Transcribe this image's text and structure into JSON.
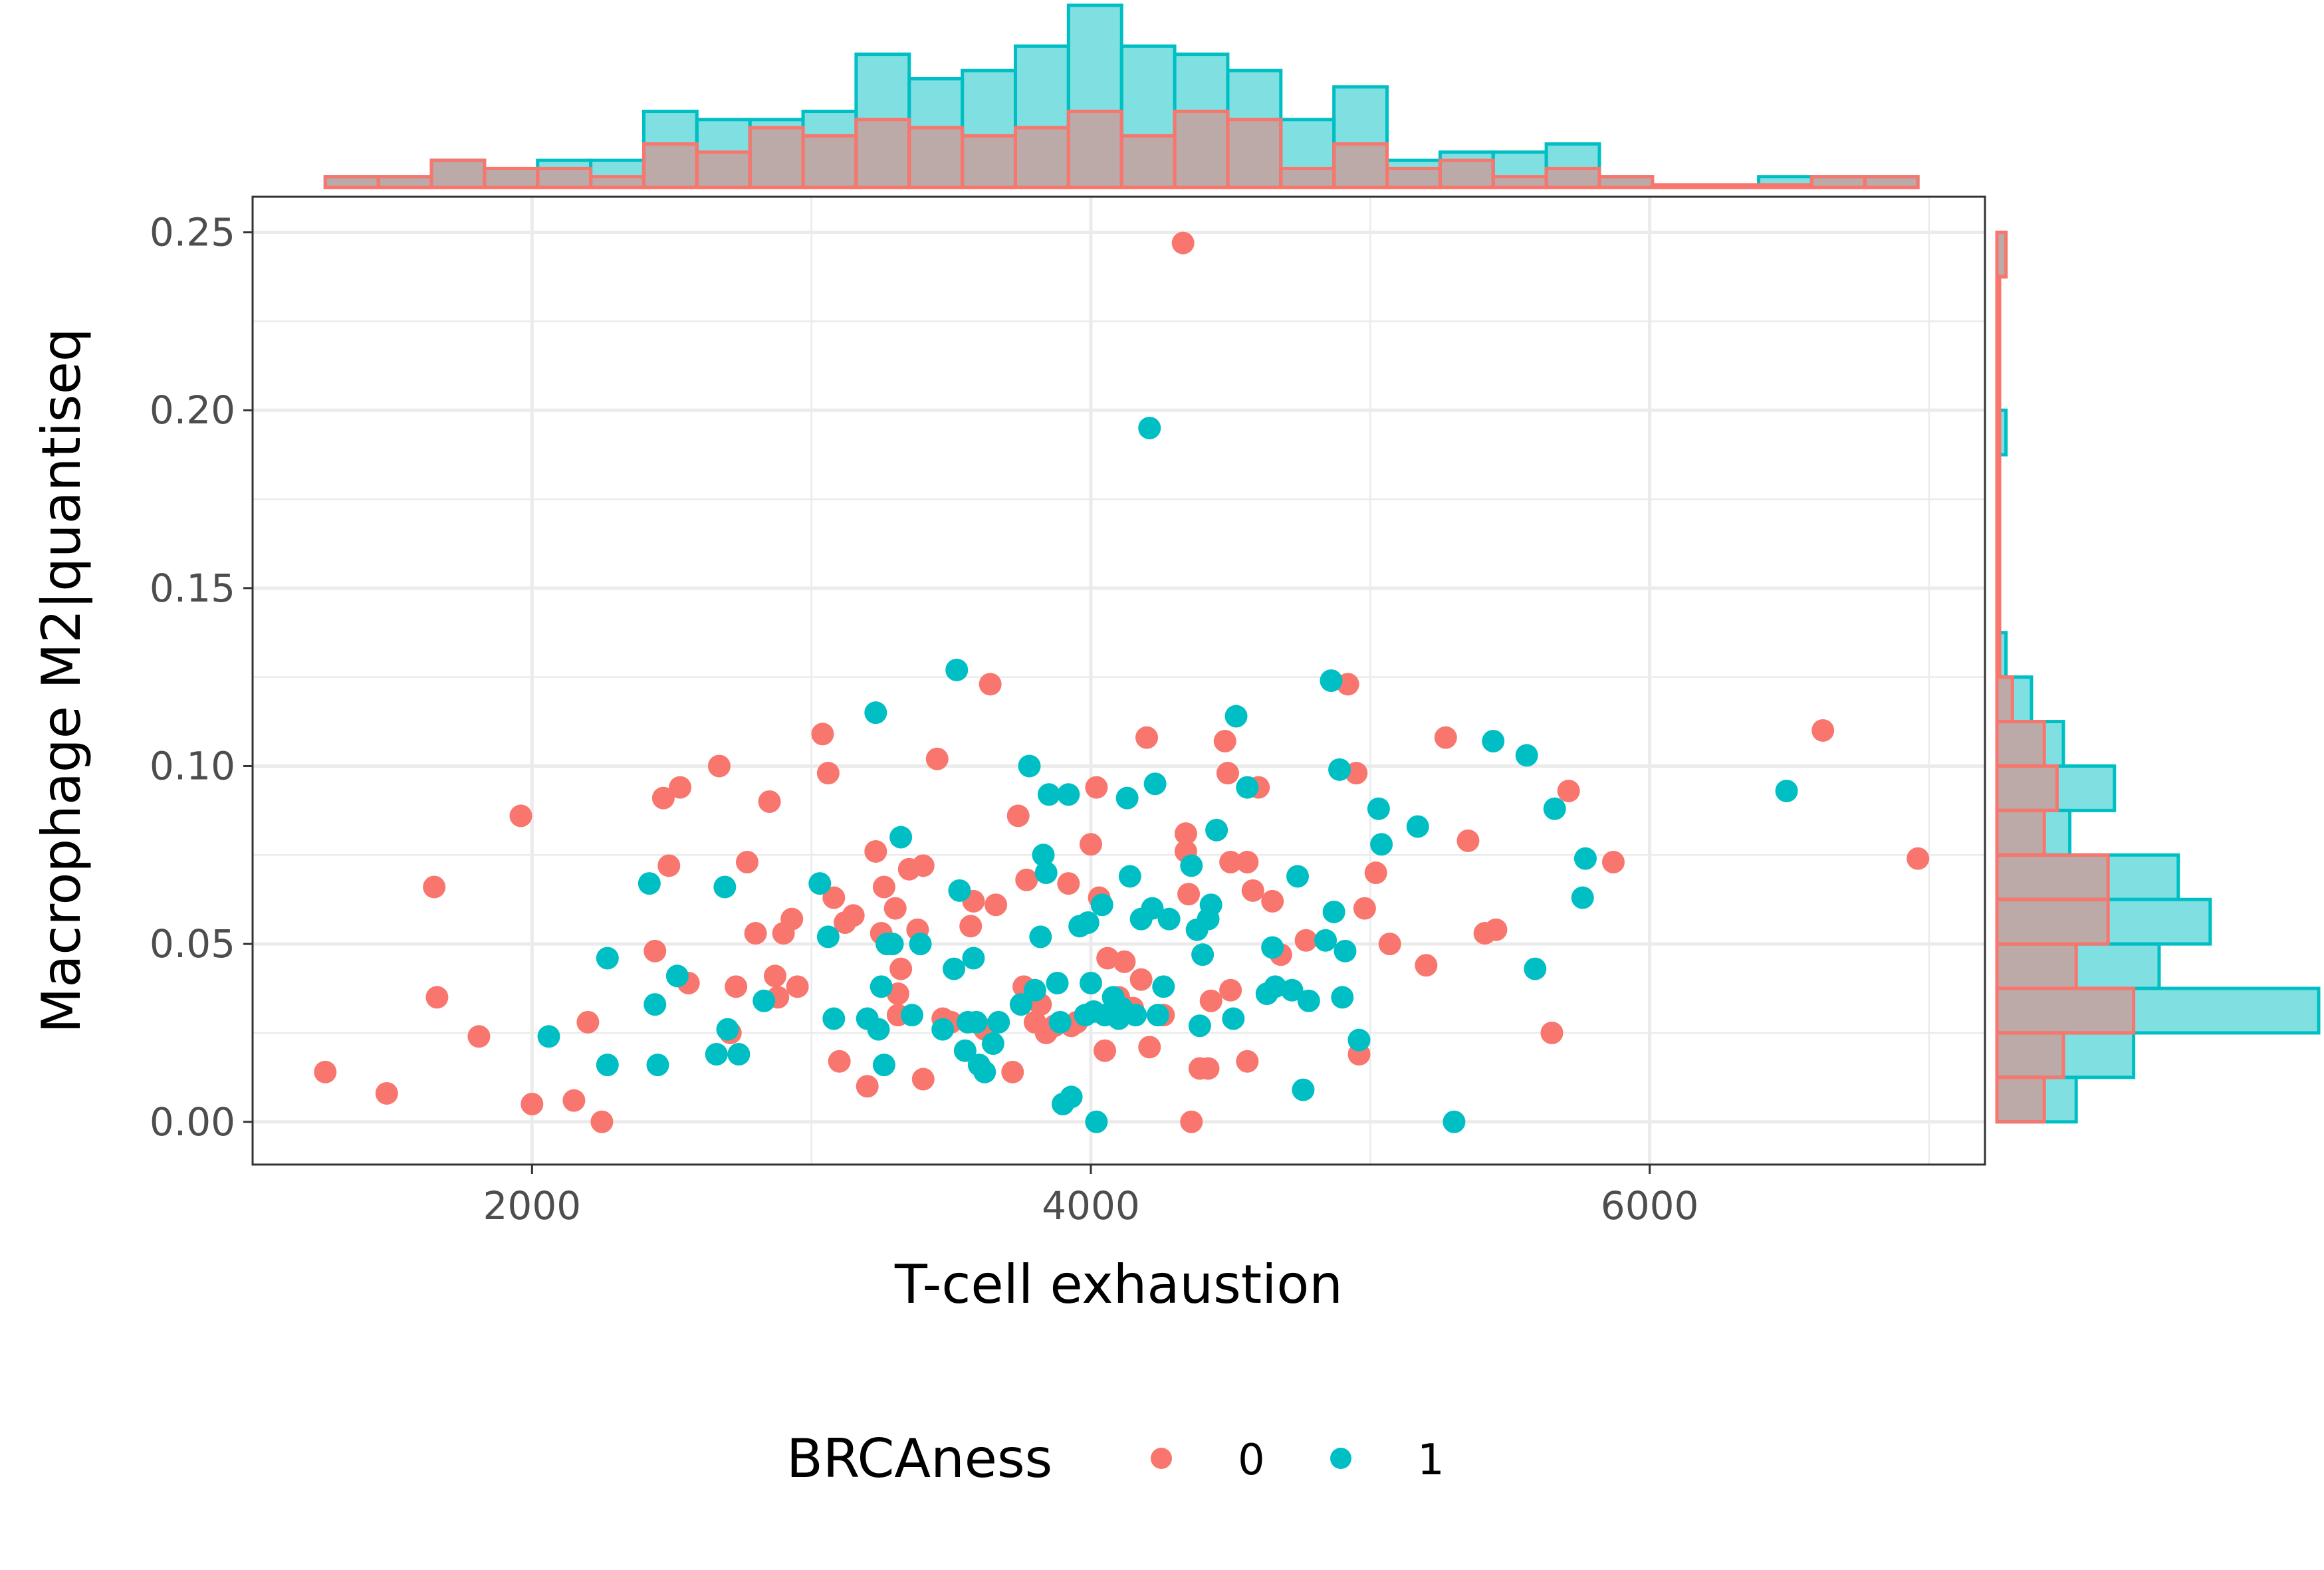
{
  "colors": {
    "group0": "#F8766D",
    "group1": "#00BFC4"
  },
  "chart_data": {
    "type": "scatter",
    "xlabel": "T-cell exhaustion",
    "ylabel": "Macrophage M2|quantiseq",
    "xlim": [
      1000,
      7200
    ],
    "ylim": [
      -0.012,
      0.26
    ],
    "x_ticks": [
      2000,
      4000,
      6000
    ],
    "x_tick_labels": [
      "2000",
      "4000",
      "6000"
    ],
    "y_ticks": [
      0,
      0.05,
      0.1,
      0.15,
      0.2,
      0.25
    ],
    "y_tick_labels": [
      "0.00",
      "0.05",
      "0.10",
      "0.15",
      "0.20",
      "0.25"
    ],
    "grid": true,
    "legend": {
      "title": "BRCAness",
      "position": "bottom",
      "entries": [
        "0",
        "1"
      ]
    },
    "marginals": "histograms of x (top) and y (right) per BRCAness group",
    "series": [
      {
        "name": "0",
        "color": "#F8766D",
        "points": [
          [
            1260,
            0.014
          ],
          [
            1480,
            0.008
          ],
          [
            1650,
            0.066
          ],
          [
            1660,
            0.035
          ],
          [
            1810,
            0.024
          ],
          [
            1960,
            0.086
          ],
          [
            2000,
            0.005
          ],
          [
            2150,
            0.006
          ],
          [
            2200,
            0.028
          ],
          [
            2250,
            0.0
          ],
          [
            2440,
            0.048
          ],
          [
            2470,
            0.091
          ],
          [
            2490,
            0.072
          ],
          [
            2530,
            0.094
          ],
          [
            2560,
            0.039
          ],
          [
            2670,
            0.1
          ],
          [
            2710,
            0.025
          ],
          [
            2730,
            0.038
          ],
          [
            2770,
            0.073
          ],
          [
            2800,
            0.053
          ],
          [
            2850,
            0.09
          ],
          [
            2870,
            0.041
          ],
          [
            2880,
            0.035
          ],
          [
            2900,
            0.053
          ],
          [
            2930,
            0.057
          ],
          [
            2950,
            0.038
          ],
          [
            3040,
            0.109
          ],
          [
            3060,
            0.098
          ],
          [
            3080,
            0.063
          ],
          [
            3100,
            0.017
          ],
          [
            3120,
            0.056
          ],
          [
            3150,
            0.058
          ],
          [
            3200,
            0.01
          ],
          [
            3230,
            0.076
          ],
          [
            3250,
            0.053
          ],
          [
            3260,
            0.066
          ],
          [
            3300,
            0.06
          ],
          [
            3310,
            0.03
          ],
          [
            3310,
            0.036
          ],
          [
            3320,
            0.043
          ],
          [
            3350,
            0.071
          ],
          [
            3380,
            0.054
          ],
          [
            3400,
            0.072
          ],
          [
            3400,
            0.012
          ],
          [
            3450,
            0.102
          ],
          [
            3470,
            0.029
          ],
          [
            3500,
            0.028
          ],
          [
            3570,
            0.055
          ],
          [
            3580,
            0.062
          ],
          [
            3620,
            0.026
          ],
          [
            3640,
            0.123
          ],
          [
            3660,
            0.061
          ],
          [
            3720,
            0.014
          ],
          [
            3740,
            0.086
          ],
          [
            3760,
            0.038
          ],
          [
            3770,
            0.068
          ],
          [
            3800,
            0.028
          ],
          [
            3820,
            0.033
          ],
          [
            3840,
            0.025
          ],
          [
            3870,
            0.027
          ],
          [
            3920,
            0.067
          ],
          [
            3930,
            0.027
          ],
          [
            3950,
            0.028
          ],
          [
            4000,
            0.078
          ],
          [
            4020,
            0.094
          ],
          [
            4030,
            0.063
          ],
          [
            4050,
            0.02
          ],
          [
            4060,
            0.046
          ],
          [
            4100,
            0.035
          ],
          [
            4120,
            0.045
          ],
          [
            4150,
            0.032
          ],
          [
            4180,
            0.04
          ],
          [
            4200,
            0.108
          ],
          [
            4210,
            0.021
          ],
          [
            4260,
            0.03
          ],
          [
            4330,
            0.247
          ],
          [
            4340,
            0.081
          ],
          [
            4340,
            0.076
          ],
          [
            4350,
            0.064
          ],
          [
            4360,
            0.0
          ],
          [
            4390,
            0.015
          ],
          [
            4420,
            0.015
          ],
          [
            4430,
            0.034
          ],
          [
            4480,
            0.107
          ],
          [
            4490,
            0.098
          ],
          [
            4500,
            0.037
          ],
          [
            4500,
            0.073
          ],
          [
            4560,
            0.073
          ],
          [
            4560,
            0.017
          ],
          [
            4580,
            0.065
          ],
          [
            4600,
            0.094
          ],
          [
            4650,
            0.062
          ],
          [
            4680,
            0.047
          ],
          [
            4770,
            0.051
          ],
          [
            4920,
            0.123
          ],
          [
            4950,
            0.098
          ],
          [
            4960,
            0.019
          ],
          [
            4980,
            0.06
          ],
          [
            5020,
            0.07
          ],
          [
            5070,
            0.05
          ],
          [
            5200,
            0.044
          ],
          [
            5270,
            0.108
          ],
          [
            5350,
            0.079
          ],
          [
            5410,
            0.053
          ],
          [
            5450,
            0.054
          ],
          [
            5650,
            0.025
          ],
          [
            5710,
            0.093
          ],
          [
            5870,
            0.073
          ],
          [
            6620,
            0.11
          ],
          [
            6960,
            0.074
          ]
        ]
      },
      {
        "name": "1",
        "color": "#00BFC4",
        "points": [
          [
            2060,
            0.024
          ],
          [
            2270,
            0.046
          ],
          [
            2270,
            0.016
          ],
          [
            2420,
            0.067
          ],
          [
            2440,
            0.033
          ],
          [
            2450,
            0.016
          ],
          [
            2520,
            0.041
          ],
          [
            2660,
            0.019
          ],
          [
            2690,
            0.066
          ],
          [
            2700,
            0.026
          ],
          [
            2740,
            0.019
          ],
          [
            2830,
            0.034
          ],
          [
            3030,
            0.067
          ],
          [
            3060,
            0.052
          ],
          [
            3080,
            0.029
          ],
          [
            3200,
            0.029
          ],
          [
            3230,
            0.115
          ],
          [
            3240,
            0.026
          ],
          [
            3250,
            0.038
          ],
          [
            3260,
            0.016
          ],
          [
            3270,
            0.05
          ],
          [
            3290,
            0.05
          ],
          [
            3320,
            0.08
          ],
          [
            3360,
            0.03
          ],
          [
            3390,
            0.05
          ],
          [
            3470,
            0.026
          ],
          [
            3510,
            0.043
          ],
          [
            3520,
            0.127
          ],
          [
            3530,
            0.065
          ],
          [
            3550,
            0.02
          ],
          [
            3560,
            0.028
          ],
          [
            3580,
            0.046
          ],
          [
            3590,
            0.028
          ],
          [
            3600,
            0.016
          ],
          [
            3620,
            0.014
          ],
          [
            3650,
            0.022
          ],
          [
            3670,
            0.028
          ],
          [
            3750,
            0.033
          ],
          [
            3780,
            0.1
          ],
          [
            3800,
            0.037
          ],
          [
            3820,
            0.052
          ],
          [
            3830,
            0.075
          ],
          [
            3840,
            0.07
          ],
          [
            3850,
            0.092
          ],
          [
            3880,
            0.039
          ],
          [
            3890,
            0.028
          ],
          [
            3900,
            0.005
          ],
          [
            3920,
            0.092
          ],
          [
            3930,
            0.007
          ],
          [
            3960,
            0.055
          ],
          [
            3980,
            0.03
          ],
          [
            3990,
            0.056
          ],
          [
            4000,
            0.039
          ],
          [
            4010,
            0.031
          ],
          [
            4020,
            0.0
          ],
          [
            4040,
            0.061
          ],
          [
            4050,
            0.03
          ],
          [
            4080,
            0.035
          ],
          [
            4090,
            0.033
          ],
          [
            4100,
            0.029
          ],
          [
            4110,
            0.032
          ],
          [
            4130,
            0.091
          ],
          [
            4140,
            0.069
          ],
          [
            4160,
            0.03
          ],
          [
            4180,
            0.057
          ],
          [
            4210,
            0.195
          ],
          [
            4220,
            0.06
          ],
          [
            4230,
            0.095
          ],
          [
            4240,
            0.03
          ],
          [
            4260,
            0.038
          ],
          [
            4280,
            0.057
          ],
          [
            4360,
            0.072
          ],
          [
            4380,
            0.054
          ],
          [
            4390,
            0.027
          ],
          [
            4400,
            0.047
          ],
          [
            4420,
            0.057
          ],
          [
            4430,
            0.061
          ],
          [
            4450,
            0.082
          ],
          [
            4510,
            0.029
          ],
          [
            4520,
            0.114
          ],
          [
            4560,
            0.094
          ],
          [
            4630,
            0.036
          ],
          [
            4650,
            0.049
          ],
          [
            4660,
            0.038
          ],
          [
            4720,
            0.037
          ],
          [
            4740,
            0.069
          ],
          [
            4760,
            0.009
          ],
          [
            4780,
            0.034
          ],
          [
            4840,
            0.051
          ],
          [
            4860,
            0.124
          ],
          [
            4870,
            0.059
          ],
          [
            4890,
            0.099
          ],
          [
            4900,
            0.035
          ],
          [
            4910,
            0.048
          ],
          [
            4960,
            0.023
          ],
          [
            5030,
            0.088
          ],
          [
            5040,
            0.078
          ],
          [
            5170,
            0.083
          ],
          [
            5300,
            0.0
          ],
          [
            5440,
            0.107
          ],
          [
            5560,
            0.103
          ],
          [
            5590,
            0.043
          ],
          [
            5660,
            0.088
          ],
          [
            5760,
            0.063
          ],
          [
            5770,
            0.074
          ],
          [
            6490,
            0.093
          ]
        ]
      }
    ]
  }
}
